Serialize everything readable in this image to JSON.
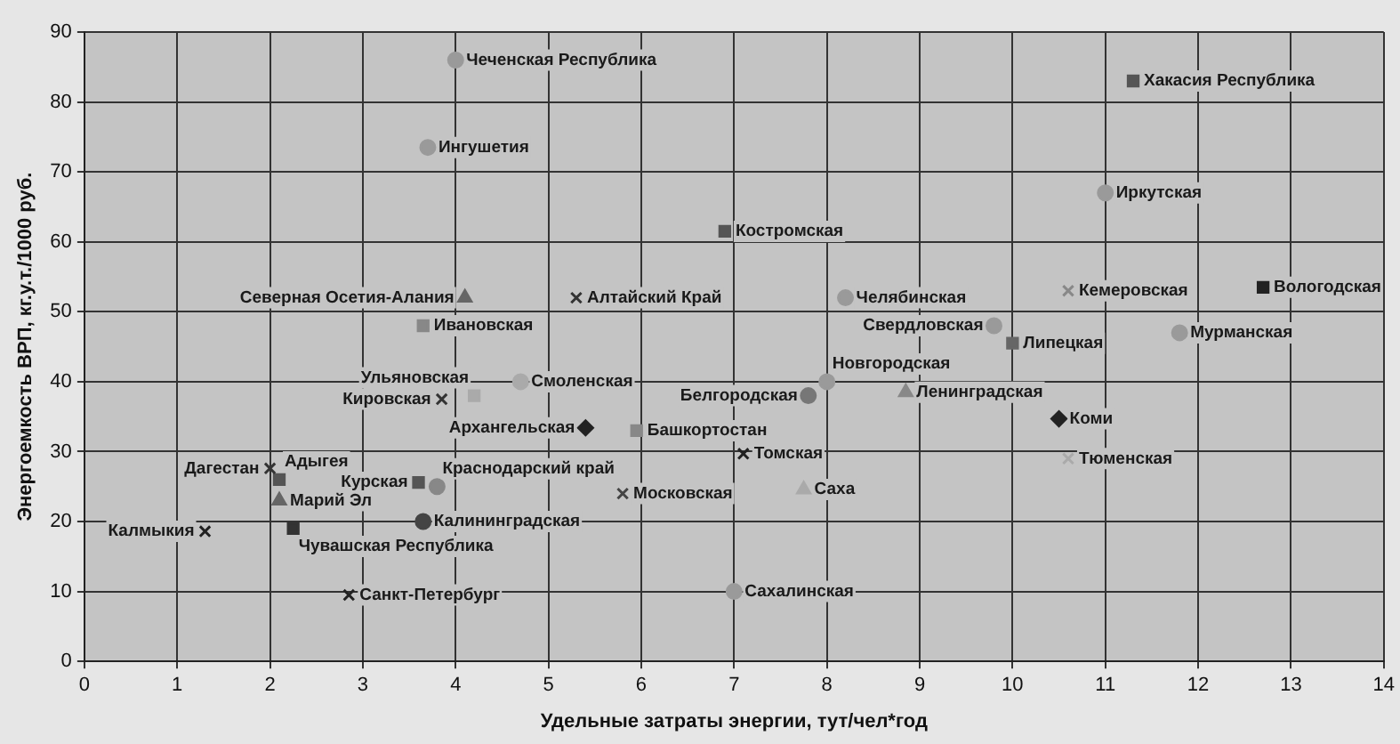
{
  "chart_data": {
    "type": "scatter",
    "xlabel": "Удельные затраты энергии, тут/чел*год",
    "ylabel": "Энергоемкость ВРП, кг.у.т./1000 руб.",
    "xlim": [
      0,
      14
    ],
    "xticks": [
      0,
      1,
      2,
      3,
      4,
      5,
      6,
      7,
      8,
      9,
      10,
      11,
      12,
      13,
      14
    ],
    "ylim": [
      0,
      90
    ],
    "yticks": [
      0,
      10,
      20,
      30,
      40,
      50,
      60,
      70,
      80,
      90
    ],
    "grid": true,
    "legend": false,
    "series": [
      {
        "name": "Чеченская Республика",
        "color": "#9a9a9a",
        "marker": "circle",
        "x": [
          4.0
        ],
        "values": [
          86
        ]
      },
      {
        "name": "Хакасия Республика",
        "color": "#555555",
        "marker": "square",
        "x": [
          11.3
        ],
        "values": [
          83
        ]
      },
      {
        "name": "Ингушетия",
        "color": "#9a9a9a",
        "marker": "circle",
        "x": [
          3.7
        ],
        "values": [
          73.5
        ]
      },
      {
        "name": "Иркутская",
        "color": "#9a9a9a",
        "marker": "circle",
        "x": [
          11.0
        ],
        "values": [
          67
        ]
      },
      {
        "name": "Костромская",
        "color": "#555555",
        "marker": "square",
        "x": [
          6.9
        ],
        "values": [
          61.5
        ]
      },
      {
        "name": "Северная Осетия-Алания",
        "color": "#666666",
        "marker": "triangle",
        "x": [
          4.1
        ],
        "values": [
          52
        ]
      },
      {
        "name": "Алтайский Край",
        "color": "#333333",
        "marker": "cross",
        "x": [
          5.3
        ],
        "values": [
          52
        ]
      },
      {
        "name": "Кемеровская",
        "color": "#888888",
        "marker": "cross",
        "x": [
          10.6
        ],
        "values": [
          53
        ]
      },
      {
        "name": "Вологодская",
        "color": "#222222",
        "marker": "square",
        "x": [
          12.7
        ],
        "values": [
          53.5
        ]
      },
      {
        "name": "Челябинская",
        "color": "#9a9a9a",
        "marker": "circle",
        "x": [
          8.2
        ],
        "values": [
          52
        ]
      },
      {
        "name": "Ивановская",
        "color": "#888888",
        "marker": "square",
        "x": [
          3.65
        ],
        "values": [
          48
        ]
      },
      {
        "name": "Свердловская",
        "color": "#9a9a9a",
        "marker": "circle",
        "x": [
          9.8
        ],
        "values": [
          48
        ]
      },
      {
        "name": "Мурманская",
        "color": "#9a9a9a",
        "marker": "circle",
        "x": [
          11.8
        ],
        "values": [
          47
        ]
      },
      {
        "name": "Липецкая",
        "color": "#666666",
        "marker": "square",
        "x": [
          10.0
        ],
        "values": [
          45.5
        ]
      },
      {
        "name": "Смоленская",
        "color": "#aaaaaa",
        "marker": "circle",
        "x": [
          4.7
        ],
        "values": [
          40
        ]
      },
      {
        "name": "Новгородская",
        "color": "#9a9a9a",
        "marker": "circle",
        "x": [
          8.0
        ],
        "values": [
          40
        ]
      },
      {
        "name": "Белгородская",
        "color": "#777777",
        "marker": "circle",
        "x": [
          7.8
        ],
        "values": [
          38
        ]
      },
      {
        "name": "Кировская",
        "color": "#333333",
        "marker": "cross",
        "x": [
          3.85
        ],
        "values": [
          37.5
        ]
      },
      {
        "name": "Ульяновская",
        "color": "#aaaaaa",
        "marker": "square",
        "x": [
          4.2
        ],
        "values": [
          38
        ]
      },
      {
        "name": "Ленинградская",
        "color": "#888888",
        "marker": "triangle",
        "x": [
          8.85
        ],
        "values": [
          38.5
        ]
      },
      {
        "name": "Коми",
        "color": "#222222",
        "marker": "diamond",
        "x": [
          10.5
        ],
        "values": [
          34.7
        ]
      },
      {
        "name": "Архангельская",
        "color": "#222222",
        "marker": "diamond",
        "x": [
          5.4
        ],
        "values": [
          33.4
        ]
      },
      {
        "name": "Башкортостан",
        "color": "#888888",
        "marker": "square",
        "x": [
          5.95
        ],
        "values": [
          33
        ]
      },
      {
        "name": "Томская",
        "color": "#222222",
        "marker": "cross",
        "x": [
          7.1
        ],
        "values": [
          29.7
        ]
      },
      {
        "name": "Тюменская",
        "color": "#aaaaaa",
        "marker": "cross",
        "x": [
          10.6
        ],
        "values": [
          29
        ]
      },
      {
        "name": "Дагестан",
        "color": "#333333",
        "marker": "cross",
        "x": [
          2.0
        ],
        "values": [
          27.6
        ]
      },
      {
        "name": "Адыгея",
        "color": "#555555",
        "marker": "square",
        "x": [
          2.1
        ],
        "values": [
          26
        ]
      },
      {
        "name": "Курская",
        "color": "#555555",
        "marker": "square",
        "x": [
          3.6
        ],
        "values": [
          25.6
        ]
      },
      {
        "name": "Краснодарский край",
        "color": "#888888",
        "marker": "circle",
        "x": [
          3.8
        ],
        "values": [
          25
        ]
      },
      {
        "name": "Саха",
        "color": "#aaaaaa",
        "marker": "triangle",
        "x": [
          7.75
        ],
        "values": [
          24.6
        ]
      },
      {
        "name": "Московская",
        "color": "#444444",
        "marker": "cross",
        "x": [
          5.8
        ],
        "values": [
          24
        ]
      },
      {
        "name": "Марий Эл",
        "color": "#666666",
        "marker": "triangle",
        "x": [
          2.1
        ],
        "values": [
          23
        ]
      },
      {
        "name": "Калининградская",
        "color": "#444444",
        "marker": "circle",
        "x": [
          3.65
        ],
        "values": [
          20
        ]
      },
      {
        "name": "Чувашская Республика",
        "color": "#333333",
        "marker": "square",
        "x": [
          2.25
        ],
        "values": [
          19
        ]
      },
      {
        "name": "Калмыкия",
        "color": "#222222",
        "marker": "cross",
        "x": [
          1.3
        ],
        "values": [
          18.6
        ]
      },
      {
        "name": "Сахалинская",
        "color": "#9a9a9a",
        "marker": "circle",
        "x": [
          7.0
        ],
        "values": [
          10
        ]
      },
      {
        "name": "Санкт-Петербург",
        "color": "#222222",
        "marker": "cross",
        "x": [
          2.85
        ],
        "values": [
          9.5
        ]
      }
    ]
  }
}
